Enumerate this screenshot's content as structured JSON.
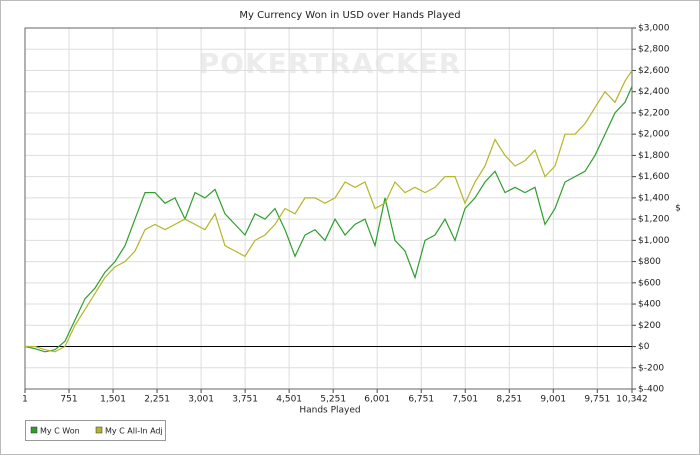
{
  "chart_data": {
    "type": "line",
    "title": "My Currency Won in USD over Hands Played",
    "watermark": "POKERTRACKER",
    "xlabel": "Hands Played",
    "ylabel": "$",
    "x": [
      1,
      171,
      342,
      512,
      682,
      853,
      1023,
      1194,
      1364,
      1534,
      1705,
      1875,
      2045,
      2216,
      2386,
      2556,
      2727,
      2897,
      3068,
      3238,
      3408,
      3579,
      3749,
      3919,
      4090,
      4260,
      4431,
      4601,
      4771,
      4942,
      5112,
      5282,
      5453,
      5623,
      5793,
      5964,
      6134,
      6305,
      6475,
      6645,
      6816,
      6986,
      7156,
      7327,
      7497,
      7668,
      7838,
      8008,
      8179,
      8349,
      8519,
      8690,
      8860,
      9030,
      9201,
      9371,
      9542,
      9712,
      9882,
      10053,
      10223,
      10342
    ],
    "series": [
      {
        "name": "My C Won",
        "color": "#2e9e2e",
        "values": [
          0,
          -20,
          -50,
          -30,
          50,
          250,
          450,
          550,
          700,
          800,
          950,
          1200,
          1450,
          1450,
          1350,
          1400,
          1200,
          1450,
          1400,
          1480,
          1250,
          1150,
          1050,
          1250,
          1200,
          1300,
          1100,
          850,
          1050,
          1100,
          1000,
          1200,
          1050,
          1150,
          1200,
          950,
          1400,
          1000,
          900,
          650,
          1000,
          1050,
          1200,
          1000,
          1300,
          1400,
          1550,
          1650,
          1450,
          1500,
          1450,
          1500,
          1150,
          1300,
          1550,
          1600,
          1650,
          1800,
          2000,
          2200,
          2300,
          2450
        ]
      },
      {
        "name": "My C All-In Adj",
        "color": "#b5b52a",
        "values": [
          0,
          0,
          -30,
          -50,
          0,
          200,
          350,
          500,
          650,
          750,
          800,
          900,
          1100,
          1150,
          1100,
          1150,
          1200,
          1150,
          1100,
          1250,
          950,
          900,
          850,
          1000,
          1050,
          1150,
          1300,
          1250,
          1400,
          1400,
          1350,
          1400,
          1550,
          1500,
          1550,
          1300,
          1350,
          1550,
          1450,
          1500,
          1450,
          1500,
          1600,
          1600,
          1350,
          1550,
          1700,
          1950,
          1800,
          1700,
          1750,
          1850,
          1600,
          1700,
          2000,
          2000,
          2100,
          2250,
          2400,
          2300,
          2500,
          2600
        ]
      }
    ],
    "xlim": [
      1,
      10342
    ],
    "xticks": [
      1,
      751,
      {
        "value": 1501,
        "label": "1,501"
      },
      {
        "value": 2251,
        "label": "2,251"
      },
      {
        "value": 3001,
        "label": "3,001"
      },
      {
        "value": 3751,
        "label": "3,751"
      },
      {
        "value": 4501,
        "label": "4,501"
      },
      {
        "value": 5251,
        "label": "5,251"
      },
      {
        "value": 6001,
        "label": "6,001"
      },
      {
        "value": 6751,
        "label": "6,751"
      },
      {
        "value": 7501,
        "label": "7,501"
      },
      {
        "value": 8251,
        "label": "8,251"
      },
      {
        "value": 9001,
        "label": "9,001"
      },
      {
        "value": 9751,
        "label": "9,751"
      },
      {
        "value": 10342,
        "label": "10,342"
      }
    ],
    "ylim": [
      -400,
      3000
    ],
    "yticks": [
      {
        "value": -400,
        "label": "$-400"
      },
      {
        "value": -200,
        "label": "$-200"
      },
      {
        "value": 0,
        "label": "$0"
      },
      {
        "value": 200,
        "label": "$200"
      },
      {
        "value": 400,
        "label": "$400"
      },
      {
        "value": 600,
        "label": "$600"
      },
      {
        "value": 800,
        "label": "$800"
      },
      {
        "value": 1000,
        "label": "$1,000"
      },
      {
        "value": 1200,
        "label": "$1,200"
      },
      {
        "value": 1400,
        "label": "$1,400"
      },
      {
        "value": 1600,
        "label": "$1,600"
      },
      {
        "value": 1800,
        "label": "$1,800"
      },
      {
        "value": 2000,
        "label": "$2,000"
      },
      {
        "value": 2200,
        "label": "$2,200"
      },
      {
        "value": 2400,
        "label": "$2,400"
      },
      {
        "value": 2600,
        "label": "$2,600"
      },
      {
        "value": 2800,
        "label": "$2,800"
      },
      {
        "value": 3000,
        "label": "$3,000"
      }
    ],
    "hline": 0,
    "grid": true,
    "legend": "bottom-left"
  }
}
